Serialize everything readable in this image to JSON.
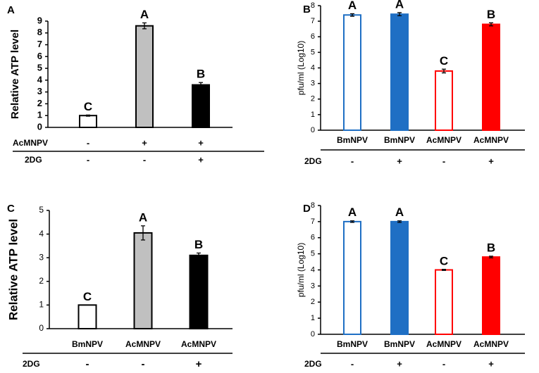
{
  "chart_data": [
    {
      "type": "bar",
      "panel": "A",
      "ylabel": "Relative ATP level",
      "values": [
        1,
        8.6,
        3.6
      ],
      "errors": [
        0.05,
        0.25,
        0.2
      ],
      "annotations": [
        "C",
        "A",
        "B"
      ],
      "fills": [
        "#ffffff",
        "#c0c0c0",
        "#000000"
      ],
      "colors": [
        "#000000",
        "#000000",
        "#000000"
      ],
      "rows": [
        {
          "label": "AcMNPV",
          "values": [
            "-",
            "+",
            "+"
          ]
        },
        {
          "label": "2DG",
          "values": [
            "-",
            "-",
            "+"
          ]
        }
      ],
      "ylim": [
        0,
        9
      ],
      "yticks": [
        0,
        1,
        2,
        3,
        4,
        5,
        6,
        7,
        8,
        9
      ]
    },
    {
      "type": "bar",
      "panel": "B",
      "ylabel": "pfu/ml (Log10)",
      "categories": [
        "BmNPV",
        "BmNPV",
        "AcMNPV",
        "AcMNPV"
      ],
      "values": [
        7.4,
        7.45,
        3.8,
        6.8
      ],
      "errors": [
        0.08,
        0.1,
        0.12,
        0.1
      ],
      "annotations": [
        "A",
        "A",
        "C",
        "B"
      ],
      "fills": [
        "#ffffff",
        "#1f6fc4",
        "#ffffff",
        "#ff0000"
      ],
      "colors": [
        "#1f6fc4",
        "#1f6fc4",
        "#ff0000",
        "#ff0000"
      ],
      "rows": [
        {
          "label": "2DG",
          "values": [
            "-",
            "+",
            "-",
            "+"
          ]
        }
      ],
      "ylim": [
        0,
        8
      ],
      "yticks": [
        0,
        1,
        2,
        3,
        4,
        5,
        6,
        7,
        8
      ]
    },
    {
      "type": "bar",
      "panel": "C",
      "ylabel": "Relative ATP level",
      "categories": [
        "BmNPV",
        "AcMNPV",
        "AcMNPV"
      ],
      "values": [
        1,
        4.05,
        3.1
      ],
      "errors": [
        0,
        0.3,
        0.1
      ],
      "annotations": [
        "C",
        "A",
        "B"
      ],
      "fills": [
        "#ffffff",
        "#c0c0c0",
        "#000000"
      ],
      "colors": [
        "#000000",
        "#000000",
        "#000000"
      ],
      "rows": [
        {
          "label": "2DG",
          "values": [
            "-",
            "-",
            "+"
          ]
        }
      ],
      "ylim": [
        0,
        5
      ],
      "yticks": [
        0,
        1,
        2,
        3,
        4,
        5
      ]
    },
    {
      "type": "bar",
      "panel": "D",
      "ylabel": "pfu/ml (Log10)",
      "categories": [
        "BmNPV",
        "BmNPV",
        "AcMNPV",
        "AcMNPV"
      ],
      "values": [
        7.0,
        7.0,
        4.0,
        4.8
      ],
      "errors": [
        0.05,
        0.05,
        0.03,
        0.05
      ],
      "annotations": [
        "A",
        "A",
        "C",
        "B"
      ],
      "fills": [
        "#ffffff",
        "#1f6fc4",
        "#ffffff",
        "#ff0000"
      ],
      "colors": [
        "#1f6fc4",
        "#1f6fc4",
        "#ff0000",
        "#ff0000"
      ],
      "rows": [
        {
          "label": "2DG",
          "values": [
            "-",
            "+",
            "-",
            "+"
          ]
        }
      ],
      "ylim": [
        0,
        8
      ],
      "yticks": [
        0,
        1,
        2,
        3,
        4,
        5,
        6,
        7,
        8
      ]
    }
  ]
}
